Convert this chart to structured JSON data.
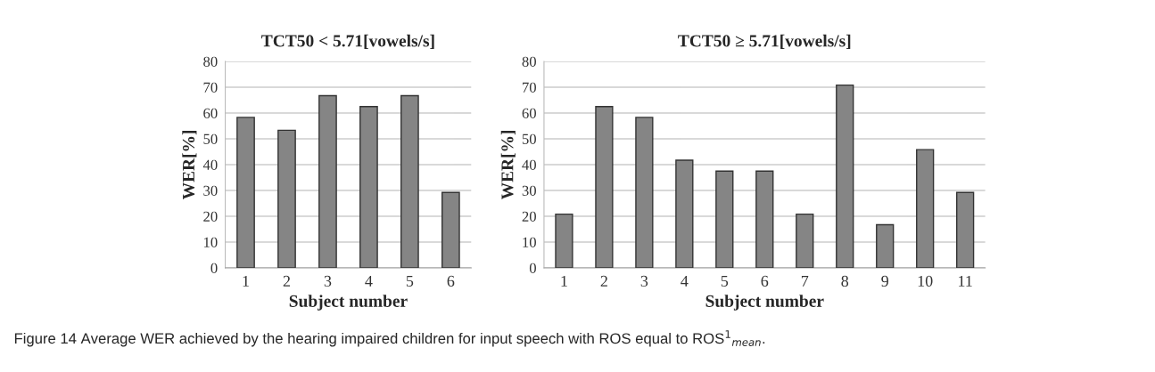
{
  "chart_data": [
    {
      "type": "bar",
      "title": "TCT50 < 5.71[vowels/s]",
      "xlabel": "Subject number",
      "ylabel": "WER[%]",
      "categories": [
        "1",
        "2",
        "3",
        "4",
        "5",
        "6"
      ],
      "values": [
        58.3,
        53.3,
        66.7,
        62.5,
        66.7,
        29.2
      ],
      "color": "#858585",
      "ylim": [
        0,
        80
      ],
      "yticks": [
        0,
        10,
        20,
        30,
        40,
        50,
        60,
        70,
        80
      ],
      "grid": "y",
      "annotations": [
        "Figure 14 Average WER achieved by the hearing impaired children for input speech with ROS equal to ROS$^{1}$$_{mean}$."
      ]
    },
    {
      "type": "bar",
      "title": "TCT50 ≥ 5.71[vowels/s]",
      "xlabel": "Subject number",
      "ylabel": "WER[%]",
      "categories": [
        "1",
        "2",
        "3",
        "4",
        "5",
        "6",
        "7",
        "8",
        "9",
        "10",
        "11"
      ],
      "values": [
        20.8,
        62.5,
        58.3,
        41.7,
        37.5,
        37.5,
        20.8,
        70.8,
        16.7,
        45.8,
        29.2
      ],
      "color": "#858585",
      "ylim": [
        0,
        80
      ],
      "yticks": [
        0,
        10,
        20,
        30,
        40,
        50,
        60,
        70,
        80
      ],
      "grid": "y"
    }
  ]
}
